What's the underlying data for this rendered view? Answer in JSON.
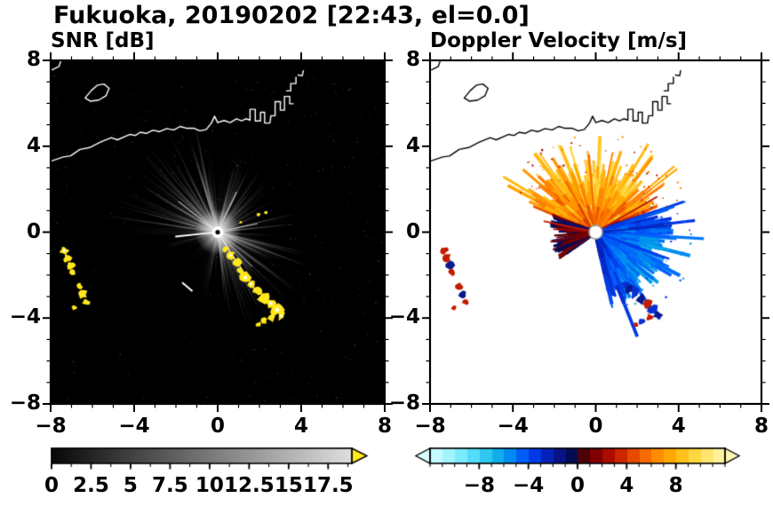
{
  "title": "Fukuoka, 20190202 [22:43, el=0.0]",
  "panels": [
    {
      "id": "snr",
      "label": "SNR [dB]",
      "x_tick_labels": [
        "−8",
        "−4",
        "0",
        "4",
        "8"
      ],
      "y_tick_labels": [
        "8",
        "4",
        "0",
        "−4",
        "−8"
      ],
      "colorbar": {
        "labels": [
          "0",
          "2.5",
          "5",
          "7.5",
          "10",
          "12.5",
          "15",
          "17.5"
        ],
        "values": [
          0,
          2.5,
          5,
          7.5,
          10,
          12.5,
          15,
          17.5
        ]
      }
    },
    {
      "id": "velocity",
      "label": "Doppler Velocity [m/s]",
      "x_tick_labels": [
        "−8",
        "−4",
        "0",
        "4",
        "8"
      ],
      "y_tick_labels": [
        "8",
        "4",
        "0",
        "−4",
        "−8"
      ],
      "colorbar": {
        "labels": [
          "−8",
          "−4",
          "0",
          "4",
          "8"
        ],
        "values": [
          -8,
          -4,
          0,
          4,
          8
        ]
      }
    }
  ],
  "chart_data": {
    "type": "heatmap",
    "subtype": "radar_ppi_pair",
    "site": "Fukuoka",
    "date": "20190202",
    "time": "22:43",
    "elevation_deg": 0.0,
    "x_range_km": [
      -8,
      8
    ],
    "y_range_km": [
      -8,
      8
    ],
    "axis_tick_values": [
      -8,
      -4,
      0,
      4,
      8
    ],
    "minor_tick_step": 1,
    "panels": [
      {
        "name": "SNR",
        "units": "dB",
        "cbar_range": [
          0,
          19
        ],
        "cbar_ticks": [
          0,
          2.5,
          5,
          7.5,
          10,
          12.5,
          15,
          17.5
        ],
        "cbar_minor": 1.25,
        "colormap": "grayscale",
        "overflow_color": "#ffe81c"
      },
      {
        "name": "Doppler Velocity",
        "units": "m/s",
        "cbar_range": [
          -12,
          12
        ],
        "cbar_ticks": [
          -8,
          -4,
          0,
          4,
          8
        ],
        "cbar_minor": 1,
        "colormap": "cyan-blue-darkblue-darkred-red-orange-yellow",
        "stepped": 1
      }
    ],
    "gray_cmap": {
      "v0": 0,
      "v1": 19,
      "c0": [
        8,
        8,
        8
      ],
      "c1": [
        223,
        223,
        223
      ]
    },
    "vel_cmap": [
      [
        -12,
        "#d8ffff"
      ],
      [
        -10,
        "#8ef2ff"
      ],
      [
        -8,
        "#3ed4f5"
      ],
      [
        -6,
        "#00a3e8"
      ],
      [
        -4.6,
        "#0060ff"
      ],
      [
        -3.2,
        "#0030dc"
      ],
      [
        -1.8,
        "#0b1596"
      ],
      [
        -0.5,
        "#040b52"
      ],
      [
        0.5,
        "#4d0208"
      ],
      [
        1.8,
        "#8f0000"
      ],
      [
        3.2,
        "#c41a00"
      ],
      [
        4.6,
        "#e84e00"
      ],
      [
        6,
        "#ff7c00"
      ],
      [
        7.6,
        "#ffab00"
      ],
      [
        9.2,
        "#ffd431"
      ],
      [
        10.8,
        "#ffe97e"
      ],
      [
        12,
        "#fff7b0"
      ]
    ],
    "coastline": [
      [
        [
          -8,
          3.3
        ],
        [
          -7.4,
          3.5
        ],
        [
          -7.05,
          3.55
        ],
        [
          -6.6,
          3.85
        ],
        [
          -6.1,
          3.95
        ],
        [
          -5.6,
          4.2
        ],
        [
          -5.1,
          4.4
        ],
        [
          -4.8,
          4.3
        ],
        [
          -4.45,
          4.45
        ],
        [
          -4.2,
          4.55
        ],
        [
          -3.95,
          4.5
        ],
        [
          -3.7,
          4.65
        ],
        [
          -3.4,
          4.6
        ],
        [
          -3.1,
          4.75
        ],
        [
          -2.8,
          4.68
        ],
        [
          -2.45,
          4.82
        ],
        [
          -2.1,
          4.76
        ],
        [
          -1.8,
          4.92
        ],
        [
          -1.5,
          4.84
        ],
        [
          -1.15,
          4.84
        ],
        [
          -0.85,
          4.72
        ],
        [
          -0.55,
          4.78
        ],
        [
          -0.3,
          5.08
        ],
        [
          -0.15,
          5.4
        ],
        [
          0.0,
          5.1
        ],
        [
          0.3,
          5.2
        ],
        [
          0.6,
          5.1
        ],
        [
          0.9,
          5.28
        ],
        [
          1.15,
          5.18
        ],
        [
          1.35,
          5.28
        ],
        [
          1.55,
          5.22
        ],
        [
          1.55,
          5.72
        ],
        [
          1.8,
          5.72
        ],
        [
          1.8,
          5.18
        ],
        [
          2.05,
          5.18
        ],
        [
          2.05,
          5.58
        ],
        [
          2.25,
          5.58
        ],
        [
          2.25,
          5.08
        ],
        [
          2.5,
          5.08
        ],
        [
          2.55,
          5.42
        ],
        [
          2.75,
          5.42
        ],
        [
          2.75,
          6.08
        ],
        [
          3.0,
          6.08
        ],
        [
          3.0,
          5.68
        ],
        [
          3.2,
          5.68
        ],
        [
          3.2,
          6.32
        ],
        [
          3.45,
          6.32
        ],
        [
          3.45,
          5.98
        ],
        [
          3.62,
          5.98
        ]
      ],
      [
        [
          3.3,
          6.58
        ],
        [
          3.5,
          6.58
        ],
        [
          3.5,
          6.92
        ],
        [
          3.75,
          6.92
        ],
        [
          3.75,
          7.22
        ]
      ],
      [
        [
          3.85,
          7.32
        ],
        [
          4.05,
          7.28
        ],
        [
          4.1,
          7.52
        ]
      ],
      [
        [
          -6.35,
          6.25
        ],
        [
          -6.05,
          6.6
        ],
        [
          -5.75,
          6.85
        ],
        [
          -5.45,
          6.9
        ],
        [
          -5.2,
          6.7
        ],
        [
          -5.35,
          6.35
        ],
        [
          -5.7,
          6.15
        ],
        [
          -6.1,
          6.1
        ],
        [
          -6.35,
          6.25
        ]
      ],
      [
        [
          -7.95,
          7.55
        ],
        [
          -7.6,
          7.72
        ],
        [
          -7.52,
          7.95
        ]
      ]
    ],
    "snr_scene": {
      "background": "#000000",
      "coast_color": "#ffffff",
      "speckle": {
        "seed": 3,
        "count": 540,
        "alpha": [
          0.04,
          0.26
        ],
        "size": [
          0.6,
          1.5
        ]
      },
      "streaks": [
        {
          "seed": 7,
          "count": 175,
          "angle": [
            0,
            360
          ],
          "len": [
            14,
            88
          ],
          "w": [
            0.7,
            1.5
          ],
          "shade": [
            50,
            125
          ],
          "alpha": [
            0.22,
            0.6
          ]
        },
        {
          "seed": 11,
          "count": 62,
          "angle": [
            95,
            178
          ],
          "len": [
            28,
            135
          ],
          "w": [
            0.7,
            1.7
          ],
          "shade": [
            110,
            195
          ],
          "alpha": [
            0.4,
            0.9
          ]
        },
        {
          "seed": 23,
          "count": 48,
          "angle": [
            5,
            80
          ],
          "len": [
            22,
            95
          ],
          "w": [
            0.7,
            1.5
          ],
          "shade": [
            100,
            180
          ],
          "alpha": [
            0.35,
            0.85
          ]
        },
        {
          "seed": 31,
          "count": 55,
          "angle": [
            -85,
            -12
          ],
          "len": [
            30,
            128
          ],
          "w": [
            0.7,
            1.7
          ],
          "shade": [
            100,
            190
          ],
          "alpha": [
            0.35,
            0.9
          ]
        },
        {
          "seed": 41,
          "count": 26,
          "angle": [
            0,
            360
          ],
          "len": [
            45,
            130
          ],
          "w": [
            3.5,
            8
          ],
          "shade": [
            80,
            140
          ],
          "alpha": [
            0.04,
            0.11
          ]
        }
      ],
      "wedges": [
        {
          "a0": 198,
          "a1": 252,
          "r": 175,
          "color": "rgba(0,0,0,0.82)"
        }
      ],
      "post_streaks": [
        {
          "seed": 53,
          "count": 10,
          "angle": [
            202,
            248
          ],
          "len": [
            12,
            48
          ],
          "w": [
            0.7,
            1.2
          ],
          "shade": [
            60,
            115
          ],
          "alpha": [
            0.3,
            0.5
          ]
        }
      ],
      "glow": {
        "r": 26,
        "a": 0.95
      },
      "rays": [
        {
          "a": 186,
          "len": 48,
          "w": 1.8,
          "c": "#ffffff"
        },
        {
          "a": -57,
          "len": 76,
          "w": 1.3,
          "c": "#f0f0f0"
        },
        {
          "a": -45,
          "len": 55,
          "w": 1.0,
          "c": "#dddddd"
        },
        {
          "a": 142,
          "len": 56,
          "w": 1.0,
          "c": "#e6e6e6"
        },
        {
          "a": 65,
          "len": 50,
          "w": 1.0,
          "c": "#dadada"
        },
        {
          "a": 12,
          "len": 46,
          "w": 0.9,
          "c": "#d0d0d0"
        }
      ],
      "dashes": [
        {
          "x": -1.7,
          "y": -2.35,
          "a": -40,
          "len": 15,
          "w": 2,
          "c": "#ffffff"
        }
      ],
      "echo_color": "#ffe81c",
      "echo_core": "#ffffff",
      "echoes": [
        [
          0.35,
          -0.78,
          4
        ],
        [
          0.62,
          -1.08,
          5
        ],
        [
          0.92,
          -1.42,
          5
        ],
        [
          1.08,
          -1.78,
          4
        ],
        [
          1.32,
          -2.12,
          6
        ],
        [
          1.6,
          -2.42,
          5
        ],
        [
          1.9,
          -2.72,
          6
        ],
        [
          2.22,
          -3.02,
          7
        ],
        [
          2.55,
          -3.32,
          6
        ],
        [
          2.85,
          -3.62,
          7
        ],
        [
          3.05,
          -3.9,
          5
        ],
        [
          2.6,
          -3.95,
          5
        ],
        [
          2.2,
          -4.15,
          4
        ],
        [
          1.95,
          -4.3,
          3
        ],
        [
          -7.35,
          -0.85,
          5
        ],
        [
          -7.2,
          -1.2,
          5
        ],
        [
          -7.05,
          -1.55,
          5
        ],
        [
          -6.95,
          -1.85,
          4
        ],
        [
          -6.6,
          -2.55,
          4
        ],
        [
          -6.45,
          -2.9,
          5
        ],
        [
          -6.3,
          -3.25,
          4
        ],
        [
          -6.85,
          -3.5,
          3
        ],
        [
          1.95,
          0.82,
          2.2
        ],
        [
          2.3,
          0.92,
          2
        ],
        [
          1.1,
          0.45,
          1.6
        ]
      ],
      "center": {
        "disc_r": 6.5,
        "disc": "#ffffff",
        "core_r": 2.6,
        "core": "#000000"
      }
    },
    "vel_scene": {
      "background": "#ffffff",
      "coast_color": "#000000",
      "fans": [
        {
          "seed": 101,
          "count": 250,
          "angle": [
            22,
            158
          ],
          "len": [
            20,
            76
          ],
          "spike_p": 0.07,
          "spike_len": 95,
          "w": [
            2.5,
            5.5
          ],
          "v0": 3.4,
          "vamp": 3.0,
          "noise": 1.6,
          "vstep": 1.4
        },
        {
          "seed": 113,
          "count": 270,
          "angle": [
            -78,
            20
          ],
          "len": [
            20,
            80
          ],
          "spike_p": 0.05,
          "spike_len": 100,
          "w": [
            2.5,
            5.5
          ],
          "v0": -2.6,
          "vamp": -1.8,
          "noise": 1.2,
          "vstep": -0.5
        },
        {
          "seed": 131,
          "count": 95,
          "angle": [
            158,
            218
          ],
          "len": [
            10,
            45
          ],
          "w": [
            2,
            4.5
          ],
          "vmix": [
            -0.8,
            1.2
          ],
          "noise": 0.5,
          "vstep": 0
        }
      ],
      "rays": [
        {
          "a": 168,
          "len": 60,
          "w": 1.8,
          "v": 3.2
        },
        {
          "a": 176,
          "len": 48,
          "w": 1.5,
          "v": 2.0
        },
        {
          "a": 192,
          "len": 52,
          "w": 1.8,
          "v": 1.5
        },
        {
          "a": 95,
          "len": 88,
          "w": 2.2,
          "v": 5.5
        },
        {
          "a": 78,
          "len": 92,
          "w": 2.0,
          "v": 6.5
        },
        {
          "a": 118,
          "len": 85,
          "w": 2.0,
          "v": 7.5
        },
        {
          "a": 30,
          "len": 80,
          "w": 2.0,
          "v": 3.0
        },
        {
          "a": -20,
          "len": 88,
          "w": 2.2,
          "v": -3.5
        },
        {
          "a": 5,
          "len": 86,
          "w": 2.0,
          "v": -2.5
        }
      ],
      "speckle_fan": {
        "seed": 151,
        "count": 95,
        "angles": [
          [
            20,
            160
          ],
          [
            -80,
            20
          ]
        ],
        "rad": [
          68,
          112
        ],
        "size": [
          1,
          2.4
        ]
      },
      "echoes": [
        [
          -7.35,
          -0.85,
          5,
          "#c41a00"
        ],
        [
          -7.2,
          -1.2,
          5,
          "#c41a00"
        ],
        [
          -7.05,
          -1.55,
          5,
          "#08188f"
        ],
        [
          -6.95,
          -1.85,
          4,
          "#c41a00"
        ],
        [
          -6.6,
          -2.55,
          4,
          "#c41a00"
        ],
        [
          -6.45,
          -2.9,
          5,
          "#08188f"
        ],
        [
          -6.3,
          -3.25,
          4,
          "#c41a00"
        ],
        [
          -6.85,
          -3.5,
          3,
          "#c41a00"
        ],
        [
          1.45,
          -2.45,
          5,
          "#0a2fd0"
        ],
        [
          1.65,
          -2.65,
          5,
          "#08188f"
        ],
        [
          1.9,
          -2.85,
          6,
          "#0a2fd0"
        ],
        [
          2.2,
          -3.1,
          6,
          "#08188f"
        ],
        [
          2.5,
          -3.4,
          6,
          "#c41a00"
        ],
        [
          2.75,
          -3.6,
          6,
          "#0a2fd0"
        ],
        [
          3.0,
          -3.85,
          5,
          "#08188f"
        ],
        [
          2.6,
          -3.95,
          4,
          "#c41a00"
        ],
        [
          2.2,
          -4.15,
          4,
          "#0a2fd0"
        ],
        [
          1.95,
          -4.3,
          3,
          "#c41a00"
        ],
        [
          1.95,
          0.82,
          2,
          "#e84e00"
        ],
        [
          2.3,
          0.92,
          2,
          "#c41a00"
        ]
      ],
      "center": {
        "disc_r": 7,
        "disc": "#ffffff",
        "ring": "#999999"
      }
    }
  }
}
